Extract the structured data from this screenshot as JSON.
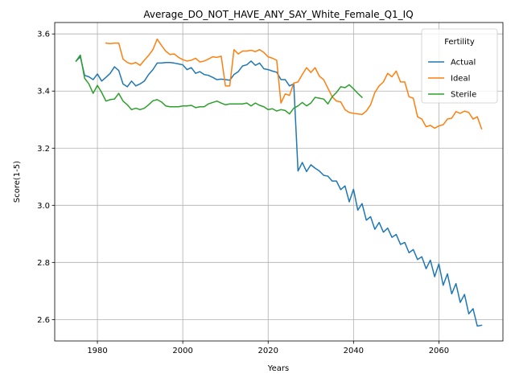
{
  "chart_data": {
    "type": "line",
    "title": "Average_DO_NOT_HAVE_ANY_SAY_White_Female_Q1_IQ",
    "xlabel": "Years",
    "ylabel": "Score(1-5)",
    "xlim": [
      1970,
      2075
    ],
    "ylim": [
      2.525,
      3.64
    ],
    "xticks": [
      1980,
      2000,
      2020,
      2040,
      2060
    ],
    "yticks": [
      2.6,
      2.8,
      3.0,
      3.2,
      3.4,
      3.6
    ],
    "grid": true,
    "legend": {
      "title": "Fertility",
      "placement": "top-right"
    },
    "series": [
      {
        "name": "Actual",
        "color": "#1f77b4",
        "x": [
          1975,
          1976,
          1977,
          1978,
          1979,
          1980,
          1981,
          1982,
          1983,
          1984,
          1985,
          1986,
          1987,
          1988,
          1989,
          1990,
          1991,
          1992,
          1993,
          1994,
          1995,
          1996,
          1997,
          1998,
          1999,
          2000,
          2001,
          2002,
          2003,
          2004,
          2005,
          2006,
          2007,
          2008,
          2009,
          2010,
          2011,
          2012,
          2013,
          2014,
          2015,
          2016,
          2017,
          2018,
          2019,
          2020,
          2021,
          2022,
          2023,
          2024,
          2025,
          2026,
          2027,
          2028,
          2029,
          2030,
          2031,
          2032,
          2033,
          2034,
          2035,
          2036,
          2037,
          2038,
          2039,
          2040,
          2041,
          2042,
          2043,
          2044,
          2045,
          2046,
          2047,
          2048,
          2049,
          2050,
          2051,
          2052,
          2053,
          2054,
          2055,
          2056,
          2057,
          2058,
          2059,
          2060,
          2061,
          2062,
          2063,
          2064,
          2065,
          2066,
          2067,
          2068,
          2069,
          2070
        ],
        "values": [
          3.505,
          3.52,
          3.455,
          3.45,
          3.44,
          3.46,
          3.435,
          3.448,
          3.462,
          3.485,
          3.472,
          3.425,
          3.415,
          3.435,
          3.418,
          3.425,
          3.435,
          3.458,
          3.475,
          3.498,
          3.498,
          3.5,
          3.5,
          3.498,
          3.495,
          3.492,
          3.475,
          3.482,
          3.462,
          3.468,
          3.458,
          3.455,
          3.448,
          3.44,
          3.442,
          3.44,
          3.438,
          3.458,
          3.468,
          3.488,
          3.492,
          3.505,
          3.49,
          3.498,
          3.478,
          3.475,
          3.47,
          3.466,
          3.44,
          3.44,
          3.418,
          3.425,
          3.12,
          3.15,
          3.118,
          3.142,
          3.13,
          3.12,
          3.105,
          3.102,
          3.085,
          3.085,
          3.055,
          3.068,
          3.012,
          3.056,
          2.983,
          3.006,
          2.948,
          2.96,
          2.916,
          2.94,
          2.906,
          2.92,
          2.888,
          2.898,
          2.863,
          2.87,
          2.834,
          2.845,
          2.81,
          2.82,
          2.778,
          2.808,
          2.75,
          2.795,
          2.72,
          2.76,
          2.69,
          2.726,
          2.66,
          2.688,
          2.62,
          2.638,
          2.577,
          2.58
        ]
      },
      {
        "name": "Ideal",
        "color": "#ff7f0e",
        "x": [
          1982,
          1983,
          1984,
          1985,
          1986,
          1987,
          1988,
          1989,
          1990,
          1991,
          1992,
          1993,
          1994,
          1995,
          1996,
          1997,
          1998,
          1999,
          2000,
          2001,
          2002,
          2003,
          2004,
          2005,
          2006,
          2007,
          2008,
          2009,
          2010,
          2011,
          2012,
          2013,
          2014,
          2015,
          2016,
          2017,
          2018,
          2019,
          2020,
          2021,
          2022,
          2023,
          2024,
          2025,
          2026,
          2027,
          2028,
          2029,
          2030,
          2031,
          2032,
          2033,
          2034,
          2035,
          2036,
          2037,
          2038,
          2039,
          2040,
          2041,
          2042,
          2043,
          2044,
          2045,
          2046,
          2047,
          2048,
          2049,
          2050,
          2051,
          2052,
          2053,
          2054,
          2055,
          2056,
          2057,
          2058,
          2059,
          2060,
          2061,
          2062,
          2063,
          2064,
          2065,
          2066,
          2067,
          2068,
          2069,
          2070
        ],
        "values": [
          3.568,
          3.566,
          3.568,
          3.568,
          3.512,
          3.5,
          3.495,
          3.5,
          3.49,
          3.508,
          3.525,
          3.545,
          3.582,
          3.56,
          3.54,
          3.528,
          3.53,
          3.518,
          3.51,
          3.505,
          3.508,
          3.515,
          3.502,
          3.505,
          3.512,
          3.52,
          3.518,
          3.522,
          3.418,
          3.418,
          3.545,
          3.53,
          3.54,
          3.54,
          3.543,
          3.538,
          3.545,
          3.535,
          3.52,
          3.515,
          3.508,
          3.358,
          3.39,
          3.385,
          3.428,
          3.432,
          3.458,
          3.482,
          3.465,
          3.482,
          3.452,
          3.44,
          3.41,
          3.38,
          3.365,
          3.362,
          3.335,
          3.325,
          3.322,
          3.32,
          3.318,
          3.33,
          3.352,
          3.395,
          3.418,
          3.432,
          3.462,
          3.45,
          3.47,
          3.432,
          3.432,
          3.38,
          3.375,
          3.31,
          3.302,
          3.275,
          3.28,
          3.27,
          3.278,
          3.282,
          3.302,
          3.305,
          3.328,
          3.322,
          3.33,
          3.325,
          3.302,
          3.31,
          3.268
        ]
      },
      {
        "name": "Sterile",
        "color": "#2ca02c",
        "x": [
          1975,
          1976,
          1977,
          1978,
          1979,
          1980,
          1981,
          1982,
          1983,
          1984,
          1985,
          1986,
          1987,
          1988,
          1989,
          1990,
          1991,
          1992,
          1993,
          1994,
          1995,
          1996,
          1997,
          1998,
          1999,
          2000,
          2001,
          2002,
          2003,
          2004,
          2005,
          2006,
          2007,
          2008,
          2009,
          2010,
          2011,
          2012,
          2013,
          2014,
          2015,
          2016,
          2017,
          2018,
          2019,
          2020,
          2021,
          2022,
          2023,
          2024,
          2025,
          2026,
          2027,
          2028,
          2029,
          2030,
          2031,
          2032,
          2033,
          2034,
          2035,
          2036,
          2037,
          2038,
          2039,
          2040,
          2041,
          2042
        ],
        "values": [
          3.505,
          3.526,
          3.445,
          3.425,
          3.392,
          3.42,
          3.395,
          3.365,
          3.37,
          3.372,
          3.392,
          3.365,
          3.352,
          3.335,
          3.34,
          3.335,
          3.34,
          3.352,
          3.366,
          3.37,
          3.362,
          3.348,
          3.345,
          3.345,
          3.345,
          3.348,
          3.348,
          3.35,
          3.342,
          3.345,
          3.345,
          3.355,
          3.36,
          3.365,
          3.358,
          3.352,
          3.355,
          3.355,
          3.355,
          3.355,
          3.358,
          3.348,
          3.358,
          3.35,
          3.345,
          3.335,
          3.338,
          3.33,
          3.335,
          3.332,
          3.32,
          3.34,
          3.348,
          3.36,
          3.348,
          3.358,
          3.378,
          3.375,
          3.372,
          3.355,
          3.38,
          3.395,
          3.415,
          3.412,
          3.422,
          3.408,
          3.392,
          3.378
        ]
      }
    ]
  }
}
